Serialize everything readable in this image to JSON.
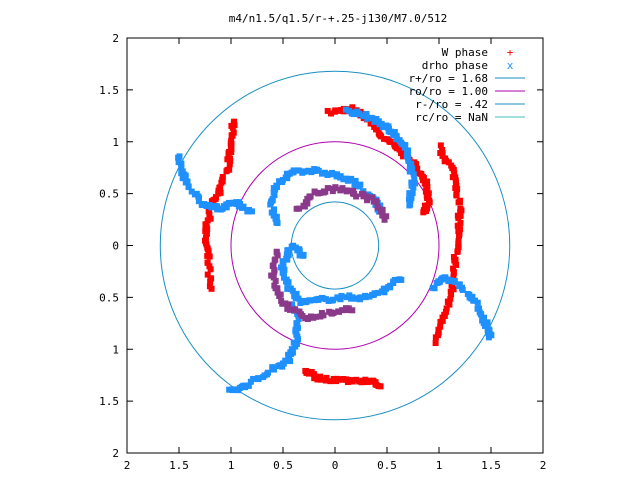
{
  "chart_data": {
    "type": "scatter",
    "title": "m4/n1.5/q1.5/r-+.25-j130/M7.0/512",
    "xlabel": "",
    "ylabel": "",
    "xlim": [
      -2,
      2
    ],
    "ylim": [
      -2,
      2
    ],
    "x_tick_values": [
      -2,
      -1.5,
      -1,
      -0.5,
      0,
      0.5,
      1,
      1.5,
      2
    ],
    "x_tick_labels": [
      "2",
      "1.5",
      "1",
      "0.5",
      "0",
      "0.5",
      "1",
      "1.5",
      "2"
    ],
    "y_tick_values": [
      2,
      1.5,
      1,
      0.5,
      0,
      -0.5,
      -1,
      -1.5,
      -2
    ],
    "y_tick_labels": [
      "2",
      "1.5",
      "1",
      "0.5",
      "0",
      "0.5",
      "1",
      "1.5",
      "2"
    ],
    "grid": false,
    "legend_position": "top-right",
    "series": [
      {
        "name": "W phase",
        "marker": "+",
        "color": "#ff0000"
      },
      {
        "name": "drho phase",
        "marker": "x",
        "color": "#1e90ff"
      }
    ],
    "circles": [
      {
        "name": "r+/ro = 1.68",
        "r": 1.68,
        "color": "#1a8fc4"
      },
      {
        "name": "ro/ro = 1.00",
        "r": 1.0,
        "color": "#b000b0"
      },
      {
        "name": "r-/ro = .42",
        "r": 0.42,
        "color": "#1a8fc4"
      },
      {
        "name": "rc/ro = NaN",
        "r": null,
        "color": "#40c0c0"
      }
    ],
    "spiral_arms": [
      {
        "color": "#ff0000",
        "points": [
          [
            -0.05,
            1.28
          ],
          [
            0.15,
            1.32
          ],
          [
            0.35,
            1.2
          ],
          [
            0.45,
            1.05
          ],
          [
            0.62,
            0.93
          ],
          [
            0.78,
            0.75
          ],
          [
            0.88,
            0.6
          ],
          [
            0.9,
            0.45
          ],
          [
            0.85,
            0.3
          ]
        ]
      },
      {
        "color": "#ff0000",
        "points": [
          [
            -0.98,
            1.2
          ],
          [
            -1.0,
            1.0
          ],
          [
            -1.02,
            0.8
          ],
          [
            -1.1,
            0.55
          ],
          [
            -1.2,
            0.35
          ],
          [
            -1.25,
            0.1
          ],
          [
            -1.22,
            -0.15
          ],
          [
            -1.2,
            -0.45
          ]
        ]
      },
      {
        "color": "#ff0000",
        "points": [
          [
            -0.3,
            -1.2
          ],
          [
            -0.15,
            -1.28
          ],
          [
            0.1,
            -1.3
          ],
          [
            0.3,
            -1.3
          ],
          [
            0.45,
            -1.35
          ]
        ]
      },
      {
        "color": "#ff0000",
        "points": [
          [
            1.0,
            0.95
          ],
          [
            1.12,
            0.75
          ],
          [
            1.18,
            0.55
          ],
          [
            1.2,
            0.3
          ],
          [
            1.18,
            0.05
          ],
          [
            1.15,
            -0.2
          ],
          [
            1.12,
            -0.45
          ],
          [
            1.05,
            -0.7
          ],
          [
            0.95,
            -0.95
          ]
        ]
      },
      {
        "color": "#1e90ff",
        "points": [
          [
            0.1,
            1.3
          ],
          [
            0.3,
            1.25
          ],
          [
            0.48,
            1.15
          ],
          [
            0.6,
            1.05
          ],
          [
            0.72,
            0.85
          ],
          [
            0.75,
            0.6
          ],
          [
            0.7,
            0.35
          ]
        ]
      },
      {
        "color": "#1e90ff",
        "points": [
          [
            -1.5,
            0.85
          ],
          [
            -1.45,
            0.65
          ],
          [
            -1.3,
            0.42
          ],
          [
            -1.1,
            0.35
          ],
          [
            -0.95,
            0.42
          ],
          [
            -0.8,
            0.3
          ]
        ]
      },
      {
        "color": "#1e90ff",
        "points": [
          [
            -1.0,
            -1.4
          ],
          [
            -0.85,
            -1.35
          ],
          [
            -0.6,
            -1.2
          ],
          [
            -0.45,
            -1.1
          ],
          [
            -0.38,
            -0.95
          ],
          [
            -0.35,
            -0.75
          ],
          [
            -0.4,
            -0.55
          ]
        ]
      },
      {
        "color": "#1e90ff",
        "points": [
          [
            0.95,
            -0.4
          ],
          [
            1.05,
            -0.3
          ],
          [
            1.2,
            -0.38
          ],
          [
            1.35,
            -0.55
          ],
          [
            1.45,
            -0.75
          ],
          [
            1.5,
            -0.9
          ]
        ]
      },
      {
        "color": "#1e90ff",
        "points": [
          [
            -0.3,
            -0.1
          ],
          [
            -0.42,
            0.0
          ],
          [
            -0.5,
            -0.2
          ],
          [
            -0.45,
            -0.4
          ],
          [
            -0.32,
            -0.55
          ],
          [
            -0.1,
            -0.52
          ],
          [
            0.1,
            -0.5
          ],
          [
            0.3,
            -0.5
          ],
          [
            0.5,
            -0.42
          ],
          [
            0.65,
            -0.3
          ]
        ]
      },
      {
        "color": "#1e90ff",
        "points": [
          [
            -0.55,
            0.2
          ],
          [
            -0.62,
            0.4
          ],
          [
            -0.55,
            0.6
          ],
          [
            -0.4,
            0.72
          ],
          [
            -0.2,
            0.72
          ],
          [
            0.0,
            0.68
          ],
          [
            0.2,
            0.6
          ],
          [
            0.38,
            0.45
          ],
          [
            0.45,
            0.28
          ]
        ]
      },
      {
        "color": "#8b3a8b",
        "points": [
          [
            -0.35,
            0.35
          ],
          [
            -0.2,
            0.5
          ],
          [
            0.0,
            0.55
          ],
          [
            0.2,
            0.5
          ],
          [
            0.4,
            0.42
          ],
          [
            0.5,
            0.25
          ]
        ]
      },
      {
        "color": "#8b3a8b",
        "points": [
          [
            -0.55,
            -0.05
          ],
          [
            -0.6,
            -0.3
          ],
          [
            -0.5,
            -0.55
          ],
          [
            -0.3,
            -0.7
          ],
          [
            -0.05,
            -0.65
          ],
          [
            0.2,
            -0.6
          ]
        ]
      }
    ]
  }
}
